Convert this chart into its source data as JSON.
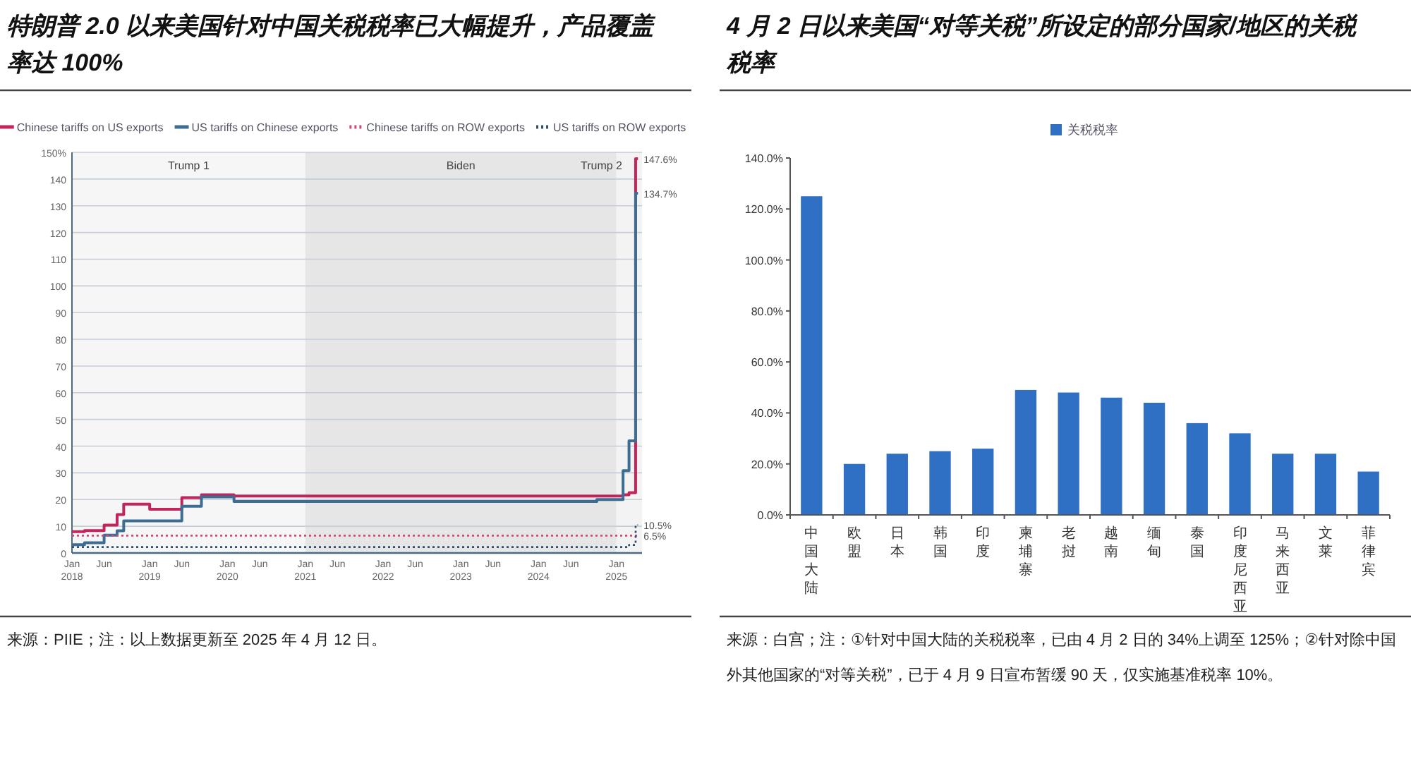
{
  "chart_data": [
    {
      "type": "step",
      "title": "特朗普 2.0 以来美国针对中国关税税率已大幅提升，产品覆盖率达 100%",
      "legend": "top",
      "grid": "y",
      "xlim": [
        "2018-01",
        "2025-05"
      ],
      "ylim": [
        0,
        150
      ],
      "yticks": [
        0,
        10,
        20,
        30,
        40,
        50,
        60,
        70,
        80,
        90,
        100,
        110,
        120,
        130,
        140,
        {
          "value": 150,
          "label": "150%"
        }
      ],
      "xticks": [
        {
          "value": "2018-01",
          "label": "Jan 2018"
        },
        {
          "value": "2018-06",
          "label": "Jun"
        },
        {
          "value": "2019-01",
          "label": "Jan 2019"
        },
        {
          "value": "2019-06",
          "label": "Jun"
        },
        {
          "value": "2020-01",
          "label": "Jan 2020"
        },
        {
          "value": "2020-06",
          "label": "Jun"
        },
        {
          "value": "2021-01",
          "label": "Jan 2021"
        },
        {
          "value": "2021-06",
          "label": "Jun"
        },
        {
          "value": "2022-01",
          "label": "Jan 2022"
        },
        {
          "value": "2022-06",
          "label": "Jun"
        },
        {
          "value": "2023-01",
          "label": "Jan 2023"
        },
        {
          "value": "2023-06",
          "label": "Jun"
        },
        {
          "value": "2024-01",
          "label": "Jan 2024"
        },
        {
          "value": "2024-06",
          "label": "Jun"
        },
        {
          "value": "2025-01",
          "label": "Jan 2025"
        }
      ],
      "bands": [
        {
          "axis": "x",
          "from": "2018-01",
          "to": "2021-01",
          "label": "Trump 1",
          "color": "#f6f6f6"
        },
        {
          "axis": "x",
          "from": "2021-01",
          "to": "2025-01",
          "label": "Biden",
          "color": "#e6e6e6"
        },
        {
          "axis": "x",
          "from": "2025-01",
          "to": "2025-05",
          "label": "Trump 2",
          "color": "#f3f3f3"
        }
      ],
      "series": [
        {
          "name": "Chinese tariffs on US exports",
          "color": "#c2255c",
          "line_style": "solid",
          "x": [
            "2018-01",
            "2018-03",
            "2018-06",
            "2018-08",
            "2018-09",
            "2019-01",
            "2019-06",
            "2019-09",
            "2020-02",
            "2025-02",
            "2025-03",
            "2025-04",
            "2025-04-12"
          ],
          "values": [
            8.0,
            8.4,
            10.4,
            14.4,
            18.3,
            16.4,
            20.7,
            21.8,
            21.3,
            21.8,
            22.6,
            147.6,
            147.6
          ]
        },
        {
          "name": "US tariffs on Chinese exports",
          "color": "#3e6d94",
          "line_style": "solid",
          "x": [
            "2018-01",
            "2018-03",
            "2018-06",
            "2018-08",
            "2018-09",
            "2019-06",
            "2019-09",
            "2020-02",
            "2024-10",
            "2025-02",
            "2025-03",
            "2025-04",
            "2025-04-12"
          ],
          "values": [
            3.1,
            3.8,
            6.7,
            8.3,
            12.0,
            17.5,
            21.0,
            19.3,
            20.0,
            30.8,
            42.0,
            134.7,
            134.7
          ]
        },
        {
          "name": "Chinese tariffs on ROW exports",
          "color": "#d0487a",
          "line_style": "dotted",
          "x": [
            "2018-01",
            "2025-04-12"
          ],
          "values": [
            6.5,
            6.5
          ]
        },
        {
          "name": "US tariffs on ROW exports",
          "color": "#2f4f6f",
          "line_style": "dotted",
          "x": [
            "2018-01",
            "2025-02",
            "2025-03",
            "2025-04",
            "2025-04-12"
          ],
          "values": [
            2.2,
            2.2,
            3.0,
            10.5,
            10.5
          ]
        }
      ],
      "annotations": [
        {
          "text": "147.6%",
          "x": "2025-04-12",
          "y": 147.6
        },
        {
          "text": "134.7%",
          "x": "2025-04-12",
          "y": 134.7
        },
        {
          "text": "10.5%",
          "x": "2025-04-12",
          "y": 10.5
        },
        {
          "text": "6.5%",
          "x": "2025-04-12",
          "y": 6.5
        },
        "来源：PIIE；注：以上数据更新至 2025 年 4 月 12 日。"
      ]
    },
    {
      "type": "bar",
      "title": "4 月 2 日以来美国“对等关税”所设定的部分国家/地区的关税税率",
      "legend": "top",
      "categories": [
        "中国大陆",
        "欧盟",
        "日本",
        "韩国",
        "印度",
        "柬埔寨",
        "老挝",
        "越南",
        "缅甸",
        "泰国",
        "印度尼西亚",
        "马来西亚",
        "文莱",
        "菲律宾"
      ],
      "series": [
        {
          "name": "关税税率",
          "color": "#3070c4",
          "values": [
            125,
            20,
            24,
            25,
            26,
            49,
            48,
            46,
            44,
            36,
            32,
            24,
            24,
            17
          ]
        }
      ],
      "ylim": [
        0,
        140
      ],
      "yticks": [
        {
          "value": 0,
          "label": "0.0%"
        },
        {
          "value": 20,
          "label": "20.0%"
        },
        {
          "value": 40,
          "label": "40.0%"
        },
        {
          "value": 60,
          "label": "60.0%"
        },
        {
          "value": 80,
          "label": "80.0%"
        },
        {
          "value": 100,
          "label": "100.0%"
        },
        {
          "value": 120,
          "label": "120.0%"
        },
        {
          "value": 140,
          "label": "140.0%"
        }
      ],
      "annotations": [
        "来源：白宫；注：①针对中国大陆的关税税率，已由 4 月 2 日的 34%上调至 125%；②针对除中国外其他国家的“对等关税”，已于 4 月 9 日宣布暂缓 90 天，仅实施基准税率 10%。"
      ]
    }
  ]
}
